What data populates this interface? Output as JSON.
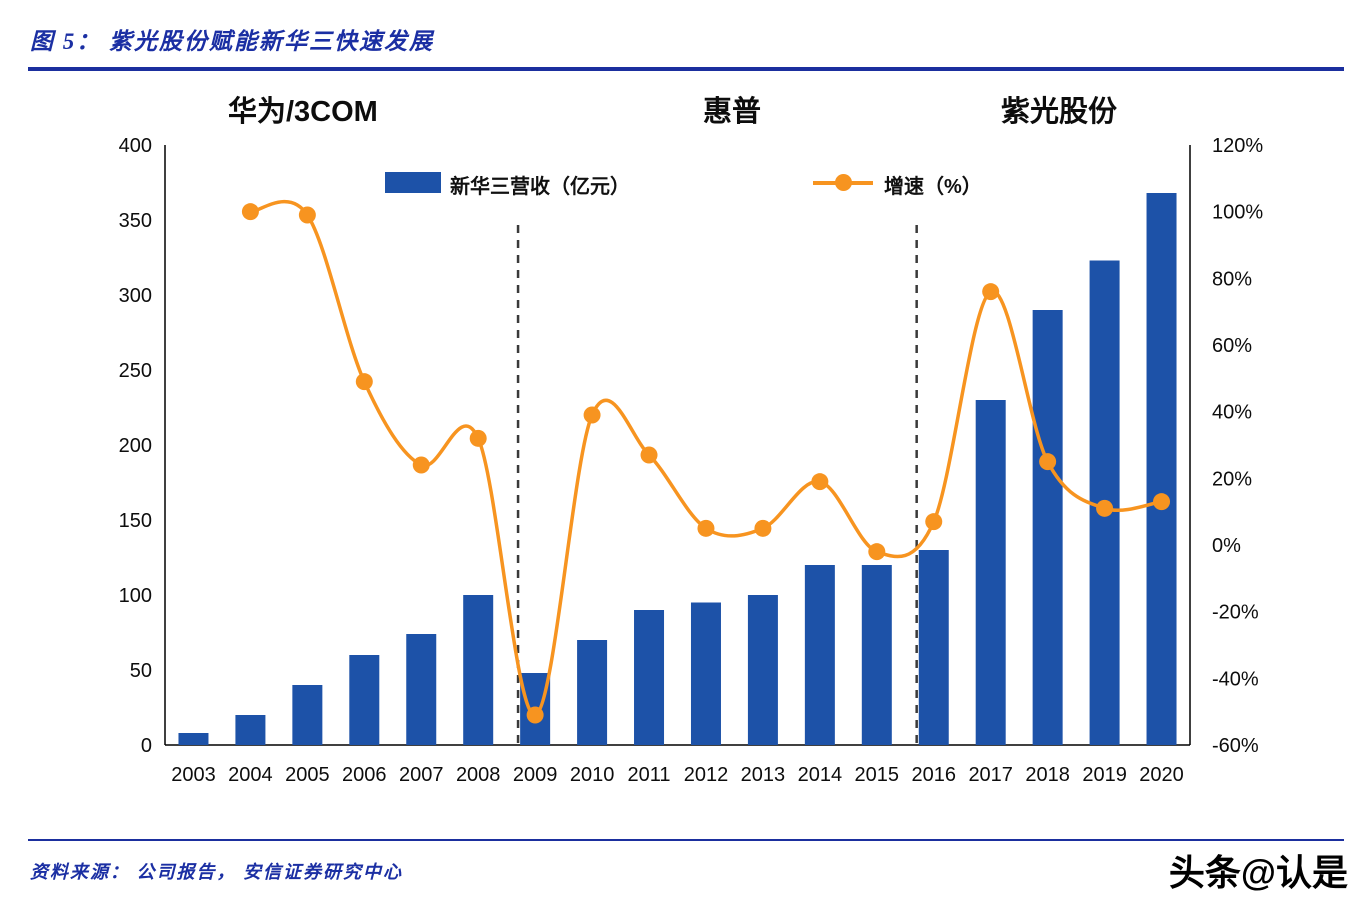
{
  "header": {
    "title": "图 5： 紫光股份赋能新华三快速发展"
  },
  "annotations": {
    "periods": [
      "华为/3COM",
      "惠普",
      "紫光股份"
    ]
  },
  "legend": {
    "bar_label": "新华三营收（亿元）",
    "line_label": "增速（%）"
  },
  "footer": {
    "source": "资料来源： 公司报告， 安信证券研究中心",
    "watermark": "头条@认是"
  },
  "colors": {
    "bar": "#1d52a8",
    "line": "#f79420",
    "accent_blue": "#1b2fa3",
    "axis": "#000000",
    "divider": "#3a3a3a"
  },
  "chart_data": {
    "type": "bar+line",
    "title": "紫光股份赋能新华三快速发展",
    "categories": [
      "2003",
      "2004",
      "2005",
      "2006",
      "2007",
      "2008",
      "2009",
      "2010",
      "2011",
      "2012",
      "2013",
      "2014",
      "2015",
      "2016",
      "2017",
      "2018",
      "2019",
      "2020"
    ],
    "series": [
      {
        "name": "新华三营收（亿元）",
        "type": "bar",
        "axis": "left",
        "values": [
          8,
          20,
          40,
          60,
          74,
          100,
          48,
          70,
          90,
          95,
          100,
          120,
          120,
          130,
          230,
          290,
          323,
          368
        ]
      },
      {
        "name": "增速（%）",
        "type": "line",
        "axis": "right",
        "values": [
          null,
          100,
          99,
          49,
          24,
          32,
          -51,
          39,
          27,
          5,
          5,
          19,
          -2,
          7,
          76,
          25,
          11,
          13
        ]
      }
    ],
    "left_axis": {
      "min": 0,
      "max": 400,
      "step": 50,
      "suffix": ""
    },
    "right_axis": {
      "min": -60,
      "max": 120,
      "step": 20,
      "suffix": "%"
    },
    "dividers_year": [
      2008.7,
      2015.7
    ],
    "grid": false,
    "legend_position": "top-inside",
    "phase_labels": [
      "华为/3COM",
      "惠普",
      "紫光股份"
    ]
  }
}
